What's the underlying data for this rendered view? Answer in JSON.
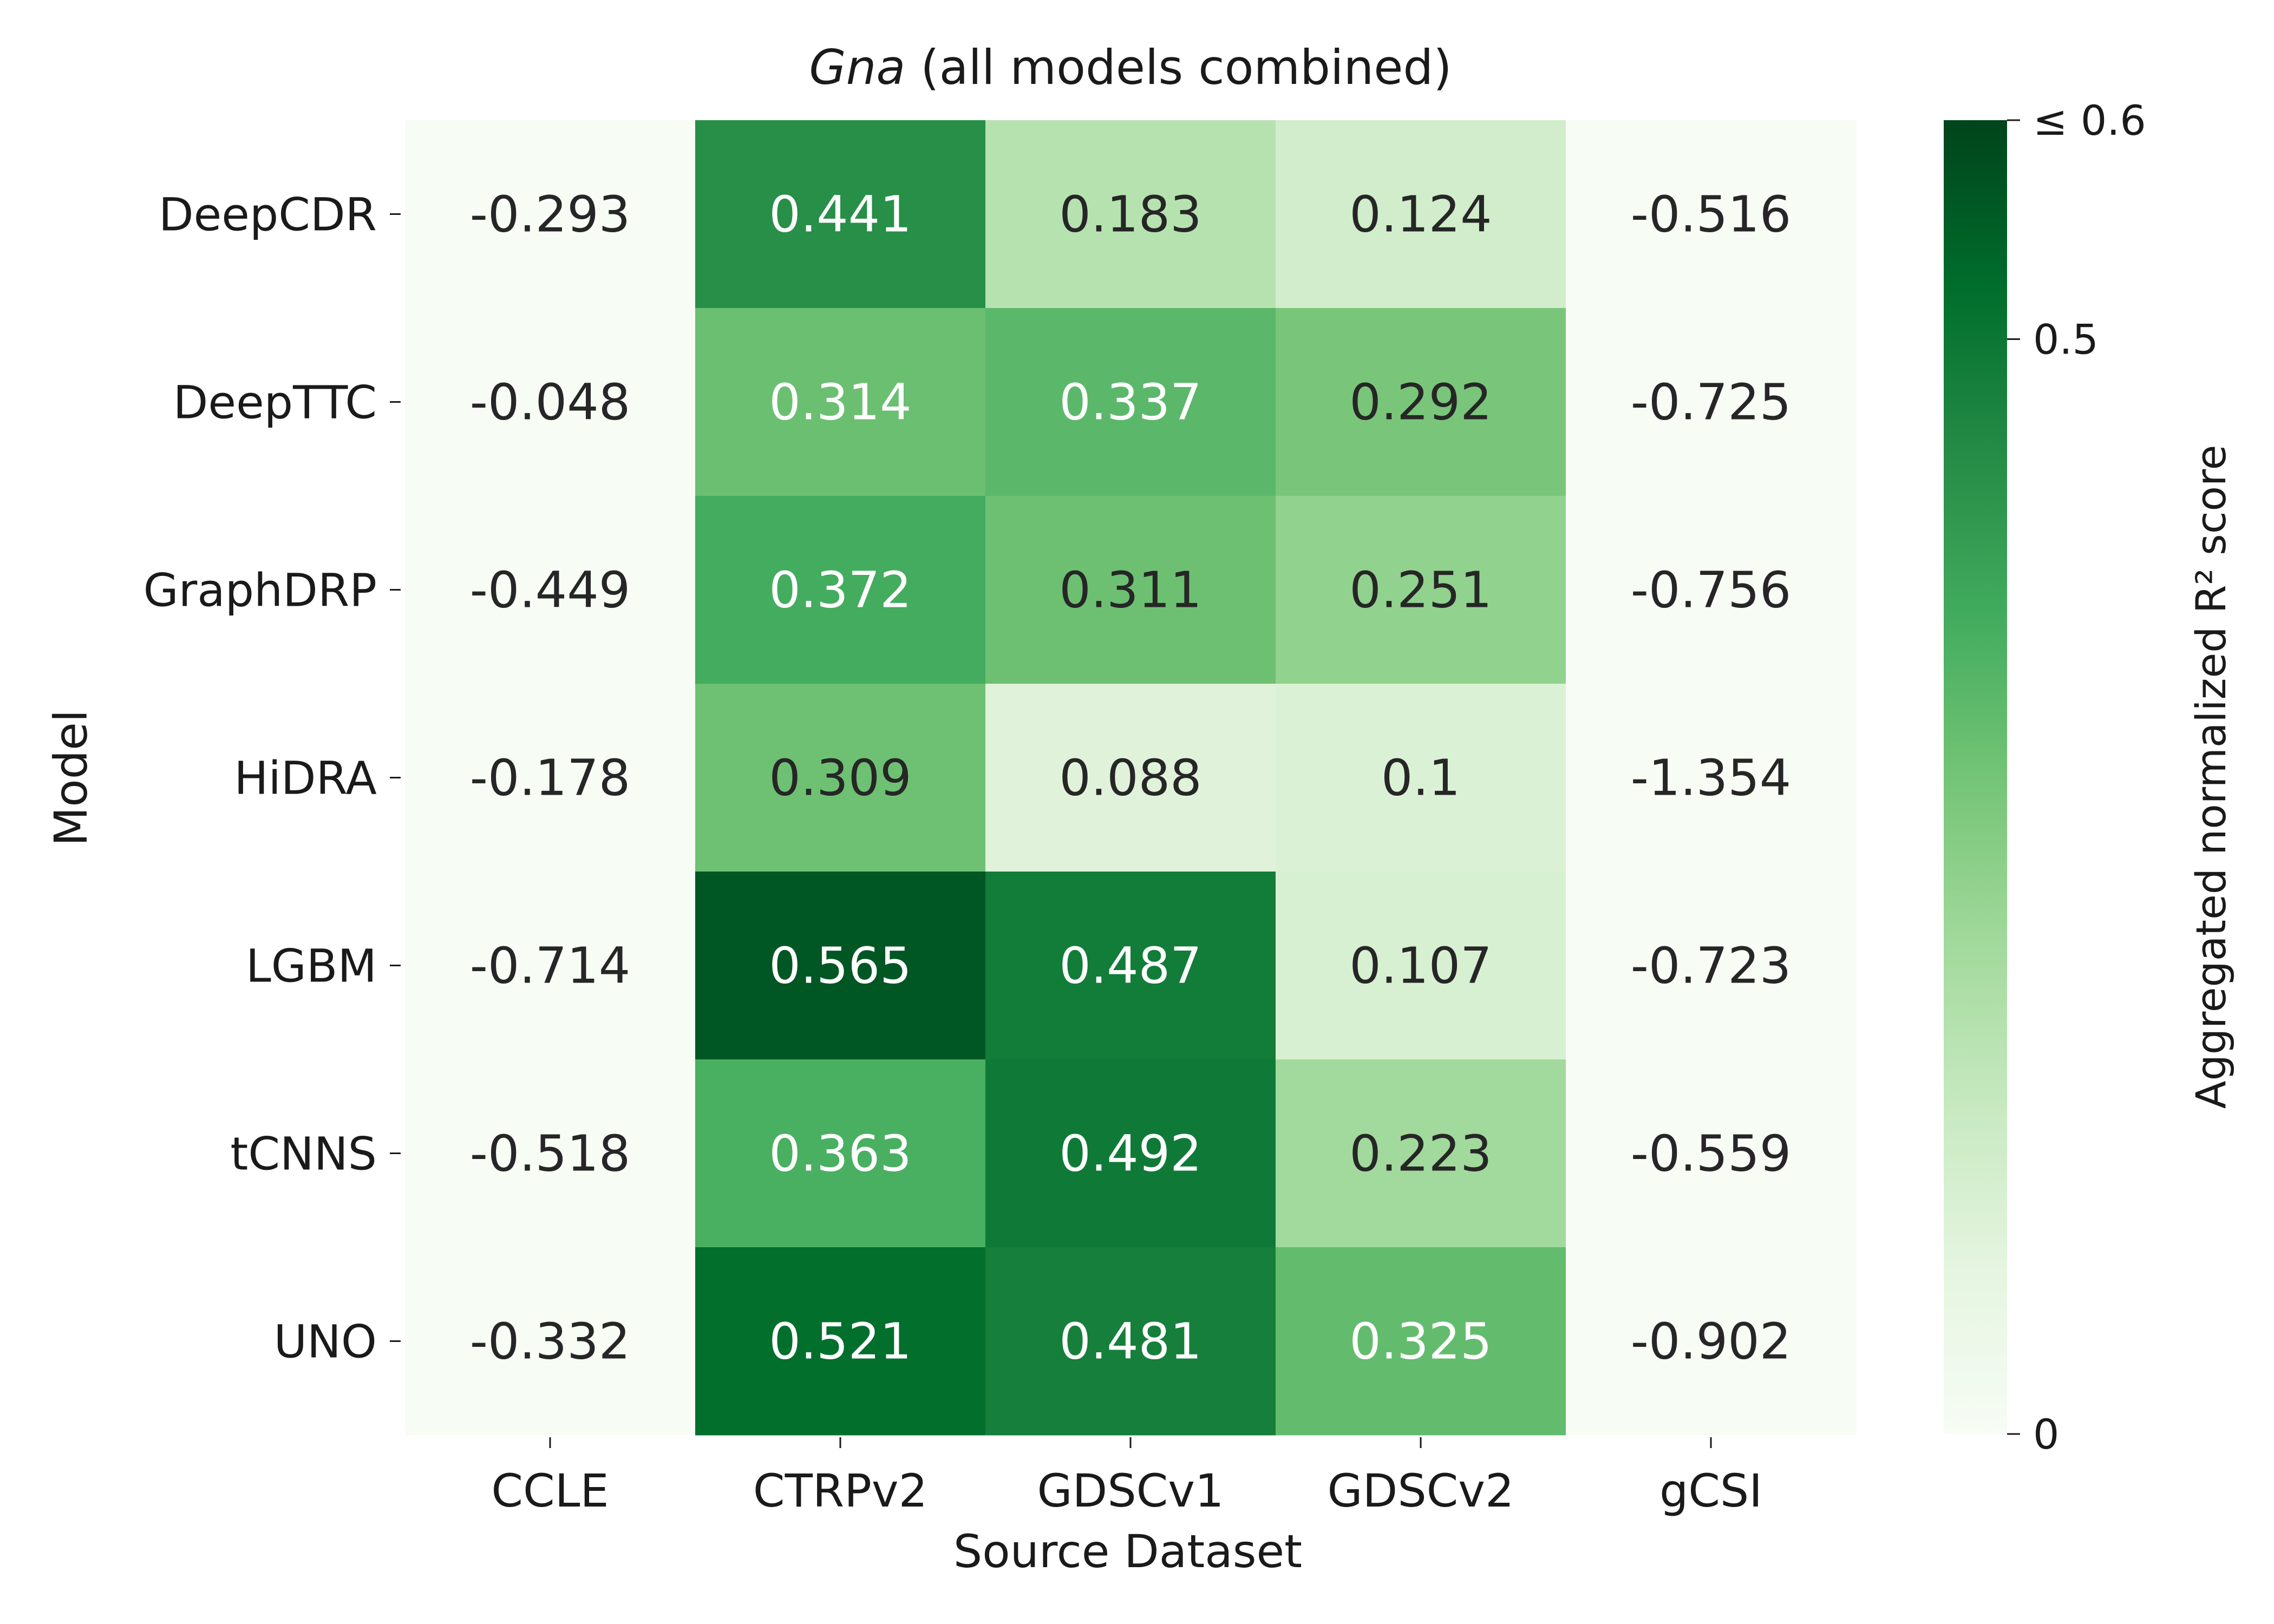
{
  "chart_data": {
    "type": "heatmap",
    "title_italic": "Gna",
    "title_rest": " (all models combined)",
    "xlabel": "Source Dataset",
    "ylabel": "Model",
    "x_categories": [
      "CCLE",
      "CTRPv2",
      "GDSCv1",
      "GDSCv2",
      "gCSI"
    ],
    "y_categories": [
      "DeepCDR",
      "DeepTTC",
      "GraphDRP",
      "HiDRA",
      "LGBM",
      "tCNNS",
      "UNO"
    ],
    "values": [
      [
        -0.293,
        0.441,
        0.183,
        0.124,
        -0.516
      ],
      [
        -0.048,
        0.314,
        0.337,
        0.292,
        -0.725
      ],
      [
        -0.449,
        0.372,
        0.311,
        0.251,
        -0.756
      ],
      [
        -0.178,
        0.309,
        0.088,
        0.1,
        -1.354
      ],
      [
        -0.714,
        0.565,
        0.487,
        0.107,
        -0.723
      ],
      [
        -0.518,
        0.363,
        0.492,
        0.223,
        -0.559
      ],
      [
        -0.332,
        0.521,
        0.481,
        0.325,
        -0.902
      ]
    ],
    "value_labels": [
      [
        "-0.293",
        "0.441",
        "0.183",
        "0.124",
        "-0.516"
      ],
      [
        "-0.048",
        "0.314",
        "0.337",
        "0.292",
        "-0.725"
      ],
      [
        "-0.449",
        "0.372",
        "0.311",
        "0.251",
        "-0.756"
      ],
      [
        "-0.178",
        "0.309",
        "0.088",
        "0.1",
        "-1.354"
      ],
      [
        "-0.714",
        "0.565",
        "0.487",
        "0.107",
        "-0.723"
      ],
      [
        "-0.518",
        "0.363",
        "0.492",
        "0.223",
        "-0.559"
      ],
      [
        "-0.332",
        "0.521",
        "0.481",
        "0.325",
        "-0.902"
      ]
    ],
    "colorbar": {
      "label": "Aggregated normalized R² score",
      "range": [
        0,
        0.6
      ],
      "ticks": [
        {
          "value": 0.6,
          "label": "≤ 0.6"
        },
        {
          "value": 0.5,
          "label": "0.5"
        },
        {
          "value": 0,
          "label": "0"
        }
      ],
      "colormap": "Greens"
    }
  }
}
